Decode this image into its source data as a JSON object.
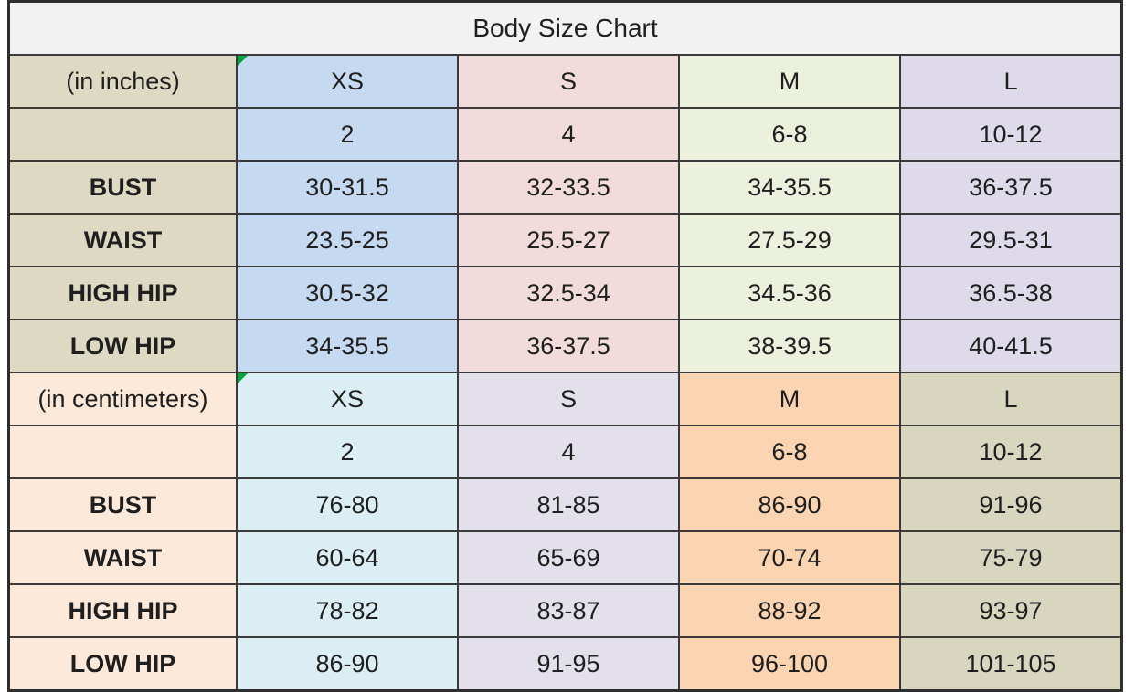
{
  "title": "Body Size Chart",
  "colors": {
    "title_bg": "#F2F2F2",
    "text": "#1F1F1F",
    "inner_border": "#3A3A3A",
    "outer_border": "#2E2E2E",
    "flag_green": "#00A33C"
  },
  "sections": [
    {
      "id": "inches",
      "unit_label": "(in inches)",
      "label_bg": "#DDD9C3",
      "col_bgs": [
        "#C5D9F1",
        "#F2DCDB",
        "#EBF1DD",
        "#DFDAE9"
      ],
      "sizes": [
        "XS",
        "S",
        "M",
        "L"
      ],
      "size_header_flags": [
        true,
        false,
        false,
        false
      ],
      "numeric_sizes": [
        "2",
        "4",
        "6-8",
        "10-12"
      ],
      "rows": [
        {
          "label": "BUST",
          "values": [
            "30-31.5",
            "32-33.5",
            "34-35.5",
            "36-37.5"
          ]
        },
        {
          "label": "WAIST",
          "values": [
            "23.5-25",
            "25.5-27",
            "27.5-29",
            "29.5-31"
          ]
        },
        {
          "label": "HIGH HIP",
          "values": [
            "30.5-32",
            "32.5-34",
            "34.5-36",
            "36.5-38"
          ]
        },
        {
          "label": "LOW HIP",
          "values": [
            "34-35.5",
            "36-37.5",
            "38-39.5",
            "40-41.5"
          ]
        }
      ]
    },
    {
      "id": "centimeters",
      "unit_label": "(in centimeters)",
      "label_bg": "#FDE9D9",
      "col_bgs": [
        "#DAEEF3",
        "#E3E0EC",
        "#FBD4B2",
        "#D9D6C0"
      ],
      "sizes": [
        "XS",
        "S",
        "M",
        "L"
      ],
      "size_header_flags": [
        true,
        false,
        false,
        false
      ],
      "numeric_sizes": [
        "2",
        "4",
        "6-8",
        "10-12"
      ],
      "rows": [
        {
          "label": "BUST",
          "values": [
            "76-80",
            "81-85",
            "86-90",
            "91-96"
          ]
        },
        {
          "label": "WAIST",
          "values": [
            "60-64",
            "65-69",
            "70-74",
            "75-79"
          ]
        },
        {
          "label": "HIGH HIP",
          "values": [
            "78-82",
            "83-87",
            "88-92",
            "93-97"
          ]
        },
        {
          "label": "LOW HIP",
          "values": [
            "86-90",
            "91-95",
            "96-100",
            "101-105"
          ]
        }
      ]
    }
  ],
  "chart_data": {
    "type": "table",
    "title": "Body Size Chart",
    "row_headers": [
      "BUST",
      "WAIST",
      "HIGH HIP",
      "LOW HIP"
    ],
    "column_headers": [
      "XS (2)",
      "S (4)",
      "M (6-8)",
      "L (10-12)"
    ],
    "inches": {
      "BUST": [
        "30-31.5",
        "32-33.5",
        "34-35.5",
        "36-37.5"
      ],
      "WAIST": [
        "23.5-25",
        "25.5-27",
        "27.5-29",
        "29.5-31"
      ],
      "HIGH HIP": [
        "30.5-32",
        "32.5-34",
        "34.5-36",
        "36.5-38"
      ],
      "LOW HIP": [
        "34-35.5",
        "36-37.5",
        "38-39.5",
        "40-41.5"
      ]
    },
    "centimeters": {
      "BUST": [
        "76-80",
        "81-85",
        "86-90",
        "91-96"
      ],
      "WAIST": [
        "60-64",
        "65-69",
        "70-74",
        "75-79"
      ],
      "HIGH HIP": [
        "78-82",
        "83-87",
        "88-92",
        "93-97"
      ],
      "LOW HIP": [
        "86-90",
        "91-95",
        "96-100",
        "101-105"
      ]
    }
  }
}
